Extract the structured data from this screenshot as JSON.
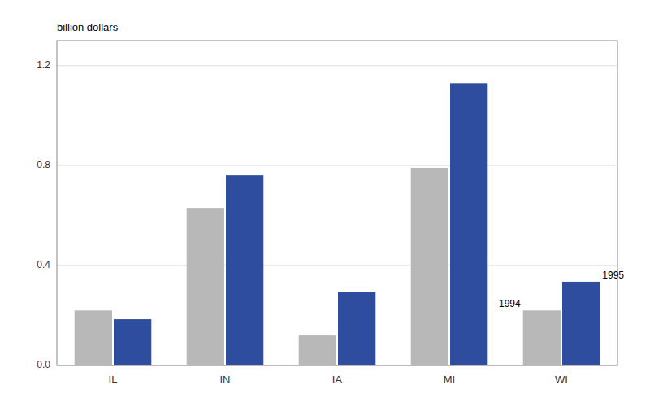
{
  "chart_data": {
    "type": "bar",
    "ylabel": "billion dollars",
    "categories": [
      "IL",
      "IN",
      "IA",
      "MI",
      "WI"
    ],
    "series": [
      {
        "name": "1994",
        "color": "#b8b8b8",
        "values": [
          0.22,
          0.63,
          0.12,
          0.79,
          0.22
        ]
      },
      {
        "name": "1995",
        "color": "#2e4d9e",
        "values": [
          0.185,
          0.76,
          0.295,
          1.13,
          0.335
        ]
      }
    ],
    "ylim": [
      0,
      1.3
    ],
    "yticks": [
      {
        "value": 0.0,
        "label": "0.0"
      },
      0.4,
      0.8,
      1.2
    ],
    "grid": true
  }
}
